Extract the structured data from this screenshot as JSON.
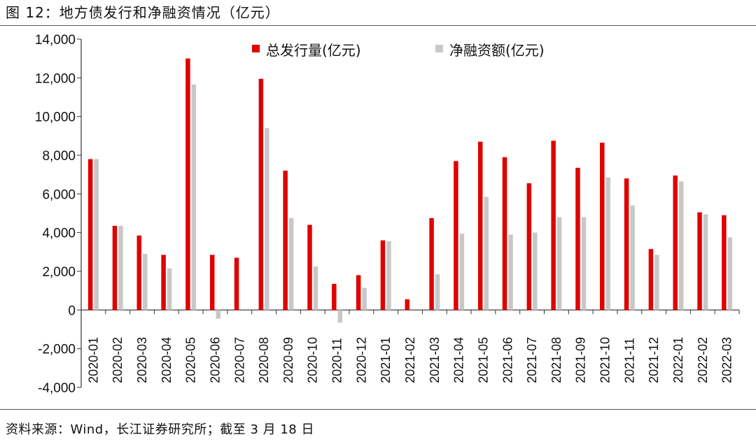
{
  "header": {
    "title": "图 12：地方债发行和净融资情况（亿元）"
  },
  "footer": {
    "source": "资料来源：Wind，长江证券研究所；截至 3 月 18 日"
  },
  "colors": {
    "issuance": "#e00000",
    "net_financing": "#c8c8c8"
  },
  "chart_data": {
    "type": "bar",
    "categories": [
      "2020-01",
      "2020-02",
      "2020-03",
      "2020-04",
      "2020-05",
      "2020-06",
      "2020-07",
      "2020-08",
      "2020-09",
      "2020-10",
      "2020-11",
      "2020-12",
      "2021-01",
      "2021-02",
      "2021-03",
      "2021-04",
      "2021-05",
      "2021-06",
      "2021-07",
      "2021-08",
      "2021-09",
      "2021-10",
      "2021-11",
      "2021-12",
      "2022-01",
      "2022-02",
      "2022-03"
    ],
    "series": [
      {
        "name": "总发行量(亿元)",
        "values": [
          7800,
          4350,
          3850,
          2850,
          13000,
          2850,
          2700,
          11950,
          7200,
          4400,
          1350,
          1800,
          3600,
          550,
          4750,
          7700,
          8700,
          7900,
          6550,
          8750,
          7350,
          8650,
          6800,
          3150,
          6950,
          5050,
          4900
        ]
      },
      {
        "name": "净融资额(亿元)",
        "values": [
          7800,
          4350,
          2900,
          2150,
          11650,
          -450,
          0,
          9400,
          4750,
          2250,
          -650,
          1150,
          3550,
          0,
          1850,
          3950,
          5850,
          3900,
          4000,
          4800,
          4800,
          6850,
          5400,
          2850,
          6650,
          4950,
          3750
        ]
      }
    ],
    "yticks": [
      "14,000",
      "12,000",
      "10,000",
      "8,000",
      "6,000",
      "4,000",
      "2,000",
      "0",
      "-2,000",
      "-4,000"
    ],
    "ylim": [
      -4000,
      14000
    ],
    "legend_position": "top-center",
    "grid": false
  }
}
